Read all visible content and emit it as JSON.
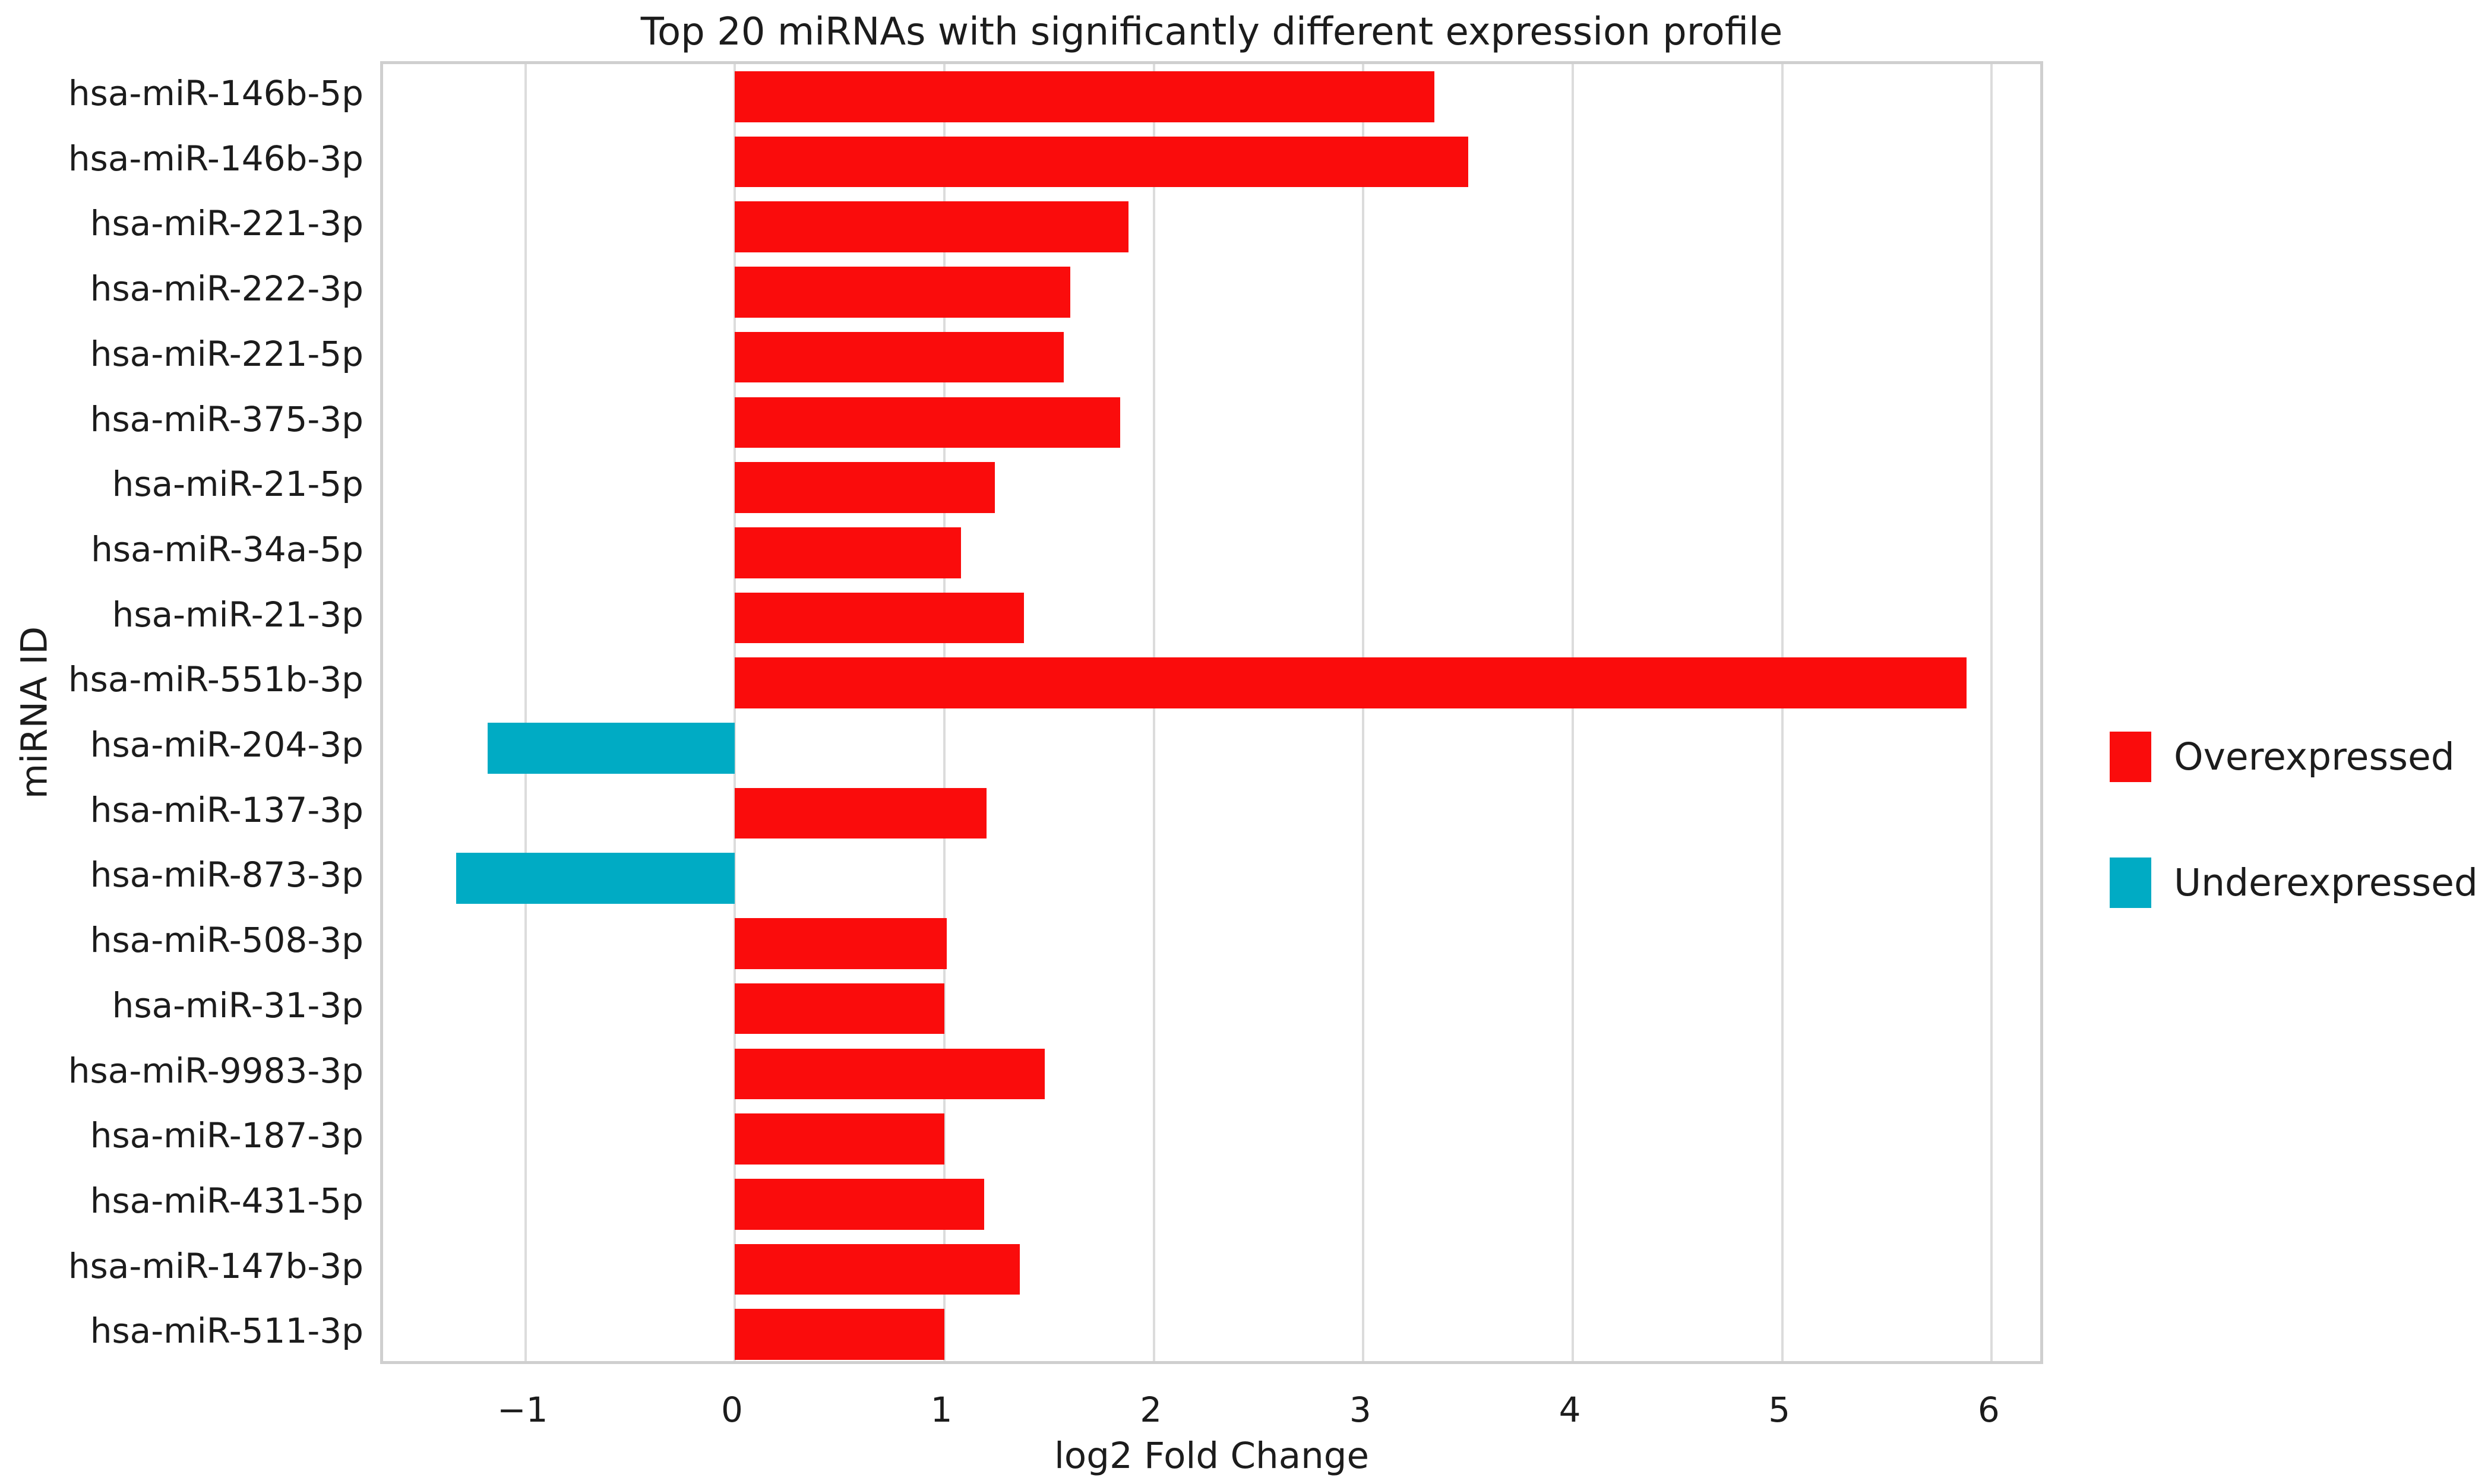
{
  "chart_data": {
    "type": "bar",
    "orientation": "horizontal",
    "title": "Top 20 miRNAs with significantly different expression profile",
    "xlabel": "log2 Fold Change",
    "ylabel": "miRNA ID",
    "xlim": [
      -1.68,
      6.26
    ],
    "grid": true,
    "grid_style": "vertical light-gray gridlines on white background (seaborn whitegrid)",
    "legend_position": "outside center-right",
    "xticks": [
      {
        "value": -1,
        "label": "−1"
      },
      {
        "value": 0,
        "label": "0"
      },
      {
        "value": 1,
        "label": "1"
      },
      {
        "value": 2,
        "label": "2"
      },
      {
        "value": 3,
        "label": "3"
      },
      {
        "value": 4,
        "label": "4"
      },
      {
        "value": 5,
        "label": "5"
      },
      {
        "value": 6,
        "label": "6"
      }
    ],
    "legend": [
      {
        "label": "Overexpressed",
        "color": "#fa0c0c"
      },
      {
        "label": "Underexpressed",
        "color": "#00abc4"
      }
    ],
    "bars": [
      {
        "category": "hsa-miR-146b-5p",
        "value": 3.34,
        "group": "Overexpressed"
      },
      {
        "category": "hsa-miR-146b-3p",
        "value": 3.5,
        "group": "Overexpressed"
      },
      {
        "category": "hsa-miR-221-3p",
        "value": 1.88,
        "group": "Overexpressed"
      },
      {
        "category": "hsa-miR-222-3p",
        "value": 1.6,
        "group": "Overexpressed"
      },
      {
        "category": "hsa-miR-221-5p",
        "value": 1.57,
        "group": "Overexpressed"
      },
      {
        "category": "hsa-miR-375-3p",
        "value": 1.84,
        "group": "Overexpressed"
      },
      {
        "category": "hsa-miR-21-5p",
        "value": 1.24,
        "group": "Overexpressed"
      },
      {
        "category": "hsa-miR-34a-5p",
        "value": 1.08,
        "group": "Overexpressed"
      },
      {
        "category": "hsa-miR-21-3p",
        "value": 1.38,
        "group": "Overexpressed"
      },
      {
        "category": "hsa-miR-551b-3p",
        "value": 5.88,
        "group": "Overexpressed"
      },
      {
        "category": "hsa-miR-204-3p",
        "value": -1.18,
        "group": "Underexpressed"
      },
      {
        "category": "hsa-miR-137-3p",
        "value": 1.2,
        "group": "Overexpressed"
      },
      {
        "category": "hsa-miR-873-3p",
        "value": -1.33,
        "group": "Underexpressed"
      },
      {
        "category": "hsa-miR-508-3p",
        "value": 1.01,
        "group": "Overexpressed"
      },
      {
        "category": "hsa-miR-31-3p",
        "value": 1.0,
        "group": "Overexpressed"
      },
      {
        "category": "hsa-miR-9983-3p",
        "value": 1.48,
        "group": "Overexpressed"
      },
      {
        "category": "hsa-miR-187-3p",
        "value": 1.0,
        "group": "Overexpressed"
      },
      {
        "category": "hsa-miR-431-5p",
        "value": 1.19,
        "group": "Overexpressed"
      },
      {
        "category": "hsa-miR-147b-3p",
        "value": 1.36,
        "group": "Overexpressed"
      },
      {
        "category": "hsa-miR-511-3p",
        "value": 1.0,
        "group": "Overexpressed"
      }
    ]
  },
  "style_colors": {
    "grid": "#dcdcdc",
    "spine": "#cfcfcf",
    "text": "#1c1c1c",
    "background": "#ffffff"
  }
}
